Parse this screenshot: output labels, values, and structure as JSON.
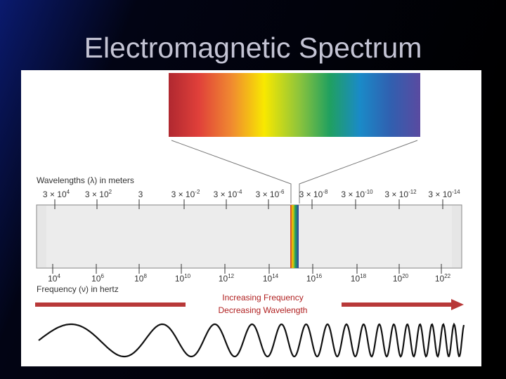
{
  "title": "Electromagnetic Spectrum",
  "wavelength_axis": {
    "label": "Wavelengths (λ) in meters",
    "ticks": [
      {
        "mantissa": "3 × 10",
        "exponent": "4"
      },
      {
        "mantissa": "3 × 10",
        "exponent": "2"
      },
      {
        "mantissa": "3"
      },
      {
        "mantissa": "3 × 10",
        "exponent": "-2"
      },
      {
        "mantissa": "3 × 10",
        "exponent": "-4"
      },
      {
        "mantissa": "3 × 10",
        "exponent": "-6"
      },
      {
        "mantissa": "3 × 10",
        "exponent": "-8"
      },
      {
        "mantissa": "3 × 10",
        "exponent": "-10"
      },
      {
        "mantissa": "3 × 10",
        "exponent": "-12"
      },
      {
        "mantissa": "3 × 10",
        "exponent": "-14"
      }
    ]
  },
  "frequency_axis": {
    "label": "Frequency (ν) in hertz",
    "ticks": [
      {
        "base": "10",
        "exponent": "4"
      },
      {
        "base": "10",
        "exponent": "6"
      },
      {
        "base": "10",
        "exponent": "8"
      },
      {
        "base": "10",
        "exponent": "10"
      },
      {
        "base": "10",
        "exponent": "12"
      },
      {
        "base": "10",
        "exponent": "14"
      },
      {
        "base": "10",
        "exponent": "16"
      },
      {
        "base": "10",
        "exponent": "18"
      },
      {
        "base": "10",
        "exponent": "20"
      },
      {
        "base": "10",
        "exponent": "22"
      }
    ]
  },
  "arrow_text": {
    "line1": "Increasing Frequency",
    "line2": "Decreasing Wavelength"
  }
}
